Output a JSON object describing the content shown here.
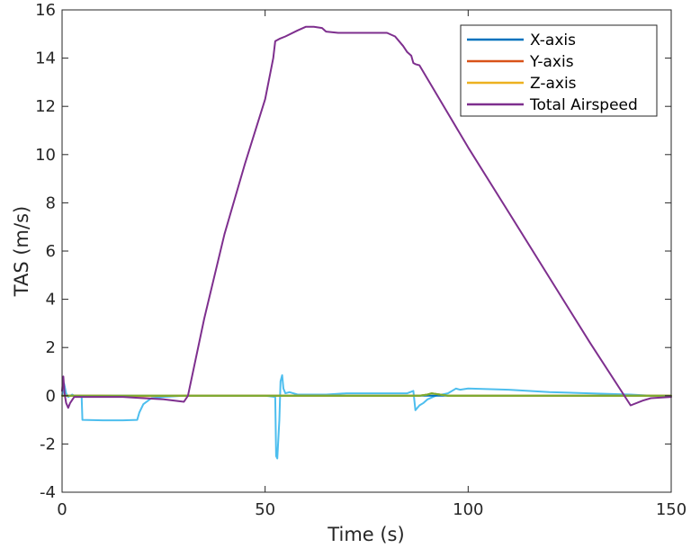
{
  "chart_data": {
    "type": "line",
    "title": "",
    "xlabel": "Time (s)",
    "ylabel": "TAS (m/s)",
    "xlim": [
      0,
      150
    ],
    "ylim": [
      -4,
      16
    ],
    "xticks": [
      0,
      50,
      100,
      150
    ],
    "yticks": [
      -4,
      -2,
      0,
      2,
      4,
      6,
      8,
      10,
      12,
      14,
      16
    ],
    "grid": false,
    "legend_position": "top-right",
    "series": [
      {
        "name": "X-axis",
        "color": "#0072BD",
        "x": [
          0,
          30,
          52,
          60,
          80,
          88,
          95,
          120,
          150
        ],
        "y": [
          0,
          0,
          0,
          0,
          0,
          0,
          0,
          0,
          0
        ]
      },
      {
        "name": "Y-axis",
        "color": "#D95319",
        "x": [
          0,
          10,
          20,
          30,
          52,
          60,
          80,
          88,
          90,
          91,
          95,
          120,
          150
        ],
        "y": [
          0,
          0,
          -0.02,
          0,
          0,
          0,
          0,
          0,
          0.05,
          0.1,
          0,
          0,
          0
        ]
      },
      {
        "name": "Z-axis",
        "color": "#EDB120",
        "x": [
          0,
          30,
          52,
          60,
          80,
          88,
          90,
          91,
          95,
          120,
          150
        ],
        "y": [
          0,
          0,
          0,
          0,
          0,
          0,
          0.05,
          0.1,
          0,
          0,
          0
        ]
      },
      {
        "name": "Total Airspeed",
        "color": "#7E2F8E",
        "x": [
          0,
          0.3,
          0.6,
          1,
          1.5,
          2,
          3,
          5,
          10,
          15,
          20,
          25,
          30,
          31,
          35,
          40,
          45,
          50,
          52,
          52.5,
          53,
          53.5,
          55,
          58,
          60,
          62,
          64,
          65,
          68,
          72,
          76,
          80,
          82,
          84,
          85,
          86,
          86.5,
          87,
          88,
          100,
          110,
          120,
          130,
          140,
          143,
          145,
          150
        ],
        "y": [
          0.2,
          0.8,
          0.1,
          -0.3,
          -0.5,
          -0.3,
          -0.05,
          -0.05,
          -0.05,
          -0.05,
          -0.1,
          -0.15,
          -0.25,
          0,
          3.2,
          6.7,
          9.6,
          12.3,
          14.0,
          14.7,
          14.75,
          14.8,
          14.9,
          15.15,
          15.3,
          15.3,
          15.25,
          15.1,
          15.05,
          15.05,
          15.05,
          15.05,
          14.9,
          14.5,
          14.25,
          14.1,
          13.8,
          13.75,
          13.7,
          10.3,
          7.6,
          4.9,
          2.2,
          -0.4,
          -0.2,
          -0.1,
          -0.05
        ]
      },
      {
        "name": "",
        "color": "#4DBEEE",
        "x": [
          0,
          0.5,
          1,
          1.5,
          2,
          2.5,
          3,
          4.8,
          5,
          5.2,
          10,
          15,
          18.5,
          19,
          20,
          22,
          25,
          30,
          31,
          40,
          50,
          52.5,
          52.7,
          53,
          53.5,
          53.8,
          54.2,
          54.5,
          55,
          56,
          58,
          60,
          65,
          70,
          80,
          85,
          86.5,
          87,
          87.5,
          88,
          89,
          90,
          92,
          95,
          97,
          98,
          100,
          110,
          120,
          130,
          140,
          145,
          150
        ],
        "y": [
          0,
          0.5,
          0.1,
          -0.05,
          0,
          0.05,
          0,
          0,
          -1.0,
          -1.0,
          -1.02,
          -1.02,
          -1.0,
          -0.7,
          -0.35,
          -0.1,
          -0.05,
          0,
          0,
          0,
          0,
          -0.05,
          -2.5,
          -2.6,
          -1.0,
          0.6,
          0.85,
          0.3,
          0.1,
          0.15,
          0.05,
          0.05,
          0.05,
          0.1,
          0.1,
          0.1,
          0.2,
          -0.6,
          -0.5,
          -0.4,
          -0.3,
          -0.15,
          0,
          0.1,
          0.3,
          0.25,
          0.3,
          0.25,
          0.15,
          0.1,
          0.05,
          0,
          0
        ]
      },
      {
        "name": "",
        "color": "#77AC30",
        "x": [
          0,
          30,
          52,
          60,
          80,
          88,
          90,
          91,
          95,
          120,
          150
        ],
        "y": [
          0,
          0,
          0,
          0,
          0,
          0,
          0.05,
          0.1,
          0,
          0,
          0
        ]
      }
    ]
  }
}
